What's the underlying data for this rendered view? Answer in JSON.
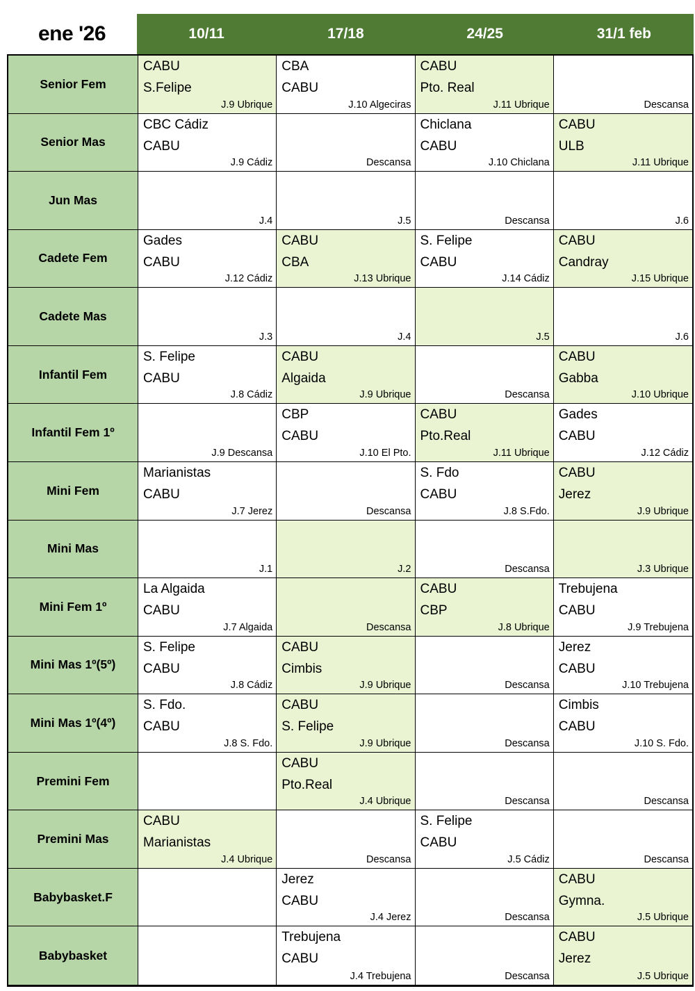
{
  "title": "ene '26",
  "columns": [
    "10/11",
    "17/18",
    "24/25",
    "31/1 feb"
  ],
  "colors": {
    "header_bg": "#4f7b35",
    "header_text": "#ffffff",
    "label_bg": "#b6d6a8",
    "highlight_bg": "#eaf3d2",
    "cell_bg": "#ffffff",
    "border": "#000000"
  },
  "rows": [
    {
      "label": "Senior Fem",
      "cells": [
        {
          "teams": [
            "CABU",
            "S.Felipe"
          ],
          "note": "J.9 Ubrique",
          "highlight": true
        },
        {
          "teams": [
            "CBA",
            "CABU"
          ],
          "note": "J.10 Algeciras",
          "highlight": false
        },
        {
          "teams": [
            "CABU",
            "Pto. Real"
          ],
          "note": "J.11 Ubrique",
          "highlight": true
        },
        {
          "teams": [],
          "note": "Descansa",
          "highlight": false
        }
      ]
    },
    {
      "label": "Senior Mas",
      "cells": [
        {
          "teams": [
            "CBC Cádiz",
            "CABU"
          ],
          "note": "J.9 Cádiz",
          "highlight": false
        },
        {
          "teams": [],
          "note": "Descansa",
          "highlight": false
        },
        {
          "teams": [
            "Chiclana",
            "CABU"
          ],
          "note": "J.10 Chiclana",
          "highlight": false
        },
        {
          "teams": [
            "CABU",
            "ULB"
          ],
          "note": "J.11 Ubrique",
          "highlight": true
        }
      ]
    },
    {
      "label": "Jun Mas",
      "cells": [
        {
          "teams": [],
          "note": "J.4",
          "highlight": false
        },
        {
          "teams": [],
          "note": "J.5",
          "highlight": false
        },
        {
          "teams": [],
          "note": "Descansa",
          "highlight": false
        },
        {
          "teams": [],
          "note": "J.6",
          "highlight": false
        }
      ]
    },
    {
      "label": "Cadete Fem",
      "cells": [
        {
          "teams": [
            "Gades",
            "CABU"
          ],
          "note": "J.12 Cádiz",
          "highlight": false
        },
        {
          "teams": [
            "CABU",
            "CBA"
          ],
          "note": "J.13 Ubrique",
          "highlight": true
        },
        {
          "teams": [
            "S. Felipe",
            "CABU"
          ],
          "note": "J.14 Cádiz",
          "highlight": false
        },
        {
          "teams": [
            "CABU",
            "Candray"
          ],
          "note": "J.15 Ubrique",
          "highlight": true
        }
      ]
    },
    {
      "label": "Cadete Mas",
      "cells": [
        {
          "teams": [],
          "note": "J.3",
          "highlight": false
        },
        {
          "teams": [],
          "note": "J.4",
          "highlight": false
        },
        {
          "teams": [],
          "note": "J.5",
          "highlight": true
        },
        {
          "teams": [],
          "note": "J.6",
          "highlight": false
        }
      ]
    },
    {
      "label": "Infantil Fem",
      "cells": [
        {
          "teams": [
            "S. Felipe",
            "CABU"
          ],
          "note": "J.8 Cádiz",
          "highlight": false
        },
        {
          "teams": [
            "CABU",
            "Algaida"
          ],
          "note": "J.9 Ubrique",
          "highlight": true
        },
        {
          "teams": [],
          "note": "Descansa",
          "highlight": false
        },
        {
          "teams": [
            "CABU",
            "Gabba"
          ],
          "note": "J.10 Ubrique",
          "highlight": true
        }
      ]
    },
    {
      "label": "Infantil Fem 1º",
      "cells": [
        {
          "teams": [],
          "note": "J.9 Descansa",
          "highlight": false
        },
        {
          "teams": [
            "CBP",
            "CABU"
          ],
          "note": "J.10 El Pto.",
          "highlight": false
        },
        {
          "teams": [
            "CABU",
            "Pto.Real"
          ],
          "note": "J.11 Ubrique",
          "highlight": true
        },
        {
          "teams": [
            "Gades",
            "CABU"
          ],
          "note": "J.12 Cádiz",
          "highlight": false
        }
      ]
    },
    {
      "label": "Mini Fem",
      "cells": [
        {
          "teams": [
            "Marianistas",
            "CABU"
          ],
          "note": "J.7 Jerez",
          "highlight": false
        },
        {
          "teams": [],
          "note": "Descansa",
          "highlight": false
        },
        {
          "teams": [
            "S. Fdo",
            "CABU"
          ],
          "note": "J.8 S.Fdo.",
          "highlight": false
        },
        {
          "teams": [
            "CABU",
            "Jerez"
          ],
          "note": "J.9 Ubrique",
          "highlight": true
        }
      ]
    },
    {
      "label": "Mini Mas",
      "cells": [
        {
          "teams": [],
          "note": "J.1",
          "highlight": false
        },
        {
          "teams": [],
          "note": "J.2",
          "highlight": true
        },
        {
          "teams": [],
          "note": "Descansa",
          "highlight": false
        },
        {
          "teams": [],
          "note": "J.3 Ubrique",
          "highlight": true
        }
      ]
    },
    {
      "label": "Mini Fem 1º",
      "cells": [
        {
          "teams": [
            "La Algaida",
            "CABU"
          ],
          "note": "J.7 Algaida",
          "highlight": false
        },
        {
          "teams": [],
          "note": "Descansa",
          "highlight": true
        },
        {
          "teams": [
            "CABU",
            "CBP"
          ],
          "note": "J.8 Ubrique",
          "highlight": true
        },
        {
          "teams": [
            "Trebujena",
            "CABU"
          ],
          "note": "J.9 Trebujena",
          "highlight": false
        }
      ]
    },
    {
      "label": "Mini Mas 1º(5º)",
      "cells": [
        {
          "teams": [
            "S. Felipe",
            "CABU"
          ],
          "note": "J.8 Cádiz",
          "highlight": false
        },
        {
          "teams": [
            "CABU",
            "Cimbis"
          ],
          "note": "J.9 Ubrique",
          "highlight": true
        },
        {
          "teams": [],
          "note": "Descansa",
          "highlight": false
        },
        {
          "teams": [
            "Jerez",
            "CABU"
          ],
          "note": "J.10 Trebujena",
          "highlight": false
        }
      ]
    },
    {
      "label": "Mini Mas 1º(4º)",
      "cells": [
        {
          "teams": [
            "S. Fdo.",
            "CABU"
          ],
          "note": "J.8 S. Fdo.",
          "highlight": false
        },
        {
          "teams": [
            "CABU",
            "S. Felipe"
          ],
          "note": "J.9 Ubrique",
          "highlight": true
        },
        {
          "teams": [],
          "note": "Descansa",
          "highlight": false
        },
        {
          "teams": [
            "Cimbis",
            "CABU"
          ],
          "note": "J.10 S. Fdo.",
          "highlight": false
        }
      ]
    },
    {
      "label": "Premini Fem",
      "cells": [
        {
          "teams": [],
          "note": "",
          "highlight": false
        },
        {
          "teams": [
            "CABU",
            "Pto.Real"
          ],
          "note": "J.4 Ubrique",
          "highlight": true
        },
        {
          "teams": [],
          "note": "Descansa",
          "highlight": false
        },
        {
          "teams": [],
          "note": "Descansa",
          "highlight": false
        }
      ]
    },
    {
      "label": "Premini Mas",
      "cells": [
        {
          "teams": [
            "CABU",
            "Marianistas"
          ],
          "note": "J.4 Ubrique",
          "highlight": true
        },
        {
          "teams": [],
          "note": "Descansa",
          "highlight": false
        },
        {
          "teams": [
            "S. Felipe",
            "CABU"
          ],
          "note": "J.5 Cádiz",
          "highlight": false
        },
        {
          "teams": [],
          "note": "Descansa",
          "highlight": false
        }
      ]
    },
    {
      "label": "Babybasket.F",
      "cells": [
        {
          "teams": [],
          "note": "",
          "highlight": false
        },
        {
          "teams": [
            "Jerez",
            "CABU"
          ],
          "note": "J.4 Jerez",
          "highlight": false
        },
        {
          "teams": [],
          "note": "Descansa",
          "highlight": false
        },
        {
          "teams": [
            "CABU",
            "Gymna."
          ],
          "note": "J.5 Ubrique",
          "highlight": true
        }
      ]
    },
    {
      "label": "Babybasket",
      "cells": [
        {
          "teams": [],
          "note": "",
          "highlight": false
        },
        {
          "teams": [
            "Trebujena",
            "CABU"
          ],
          "note": "J.4 Trebujena",
          "highlight": false
        },
        {
          "teams": [],
          "note": "Descansa",
          "highlight": false
        },
        {
          "teams": [
            "CABU",
            "Jerez"
          ],
          "note": "J.5 Ubrique",
          "highlight": true
        }
      ]
    }
  ]
}
